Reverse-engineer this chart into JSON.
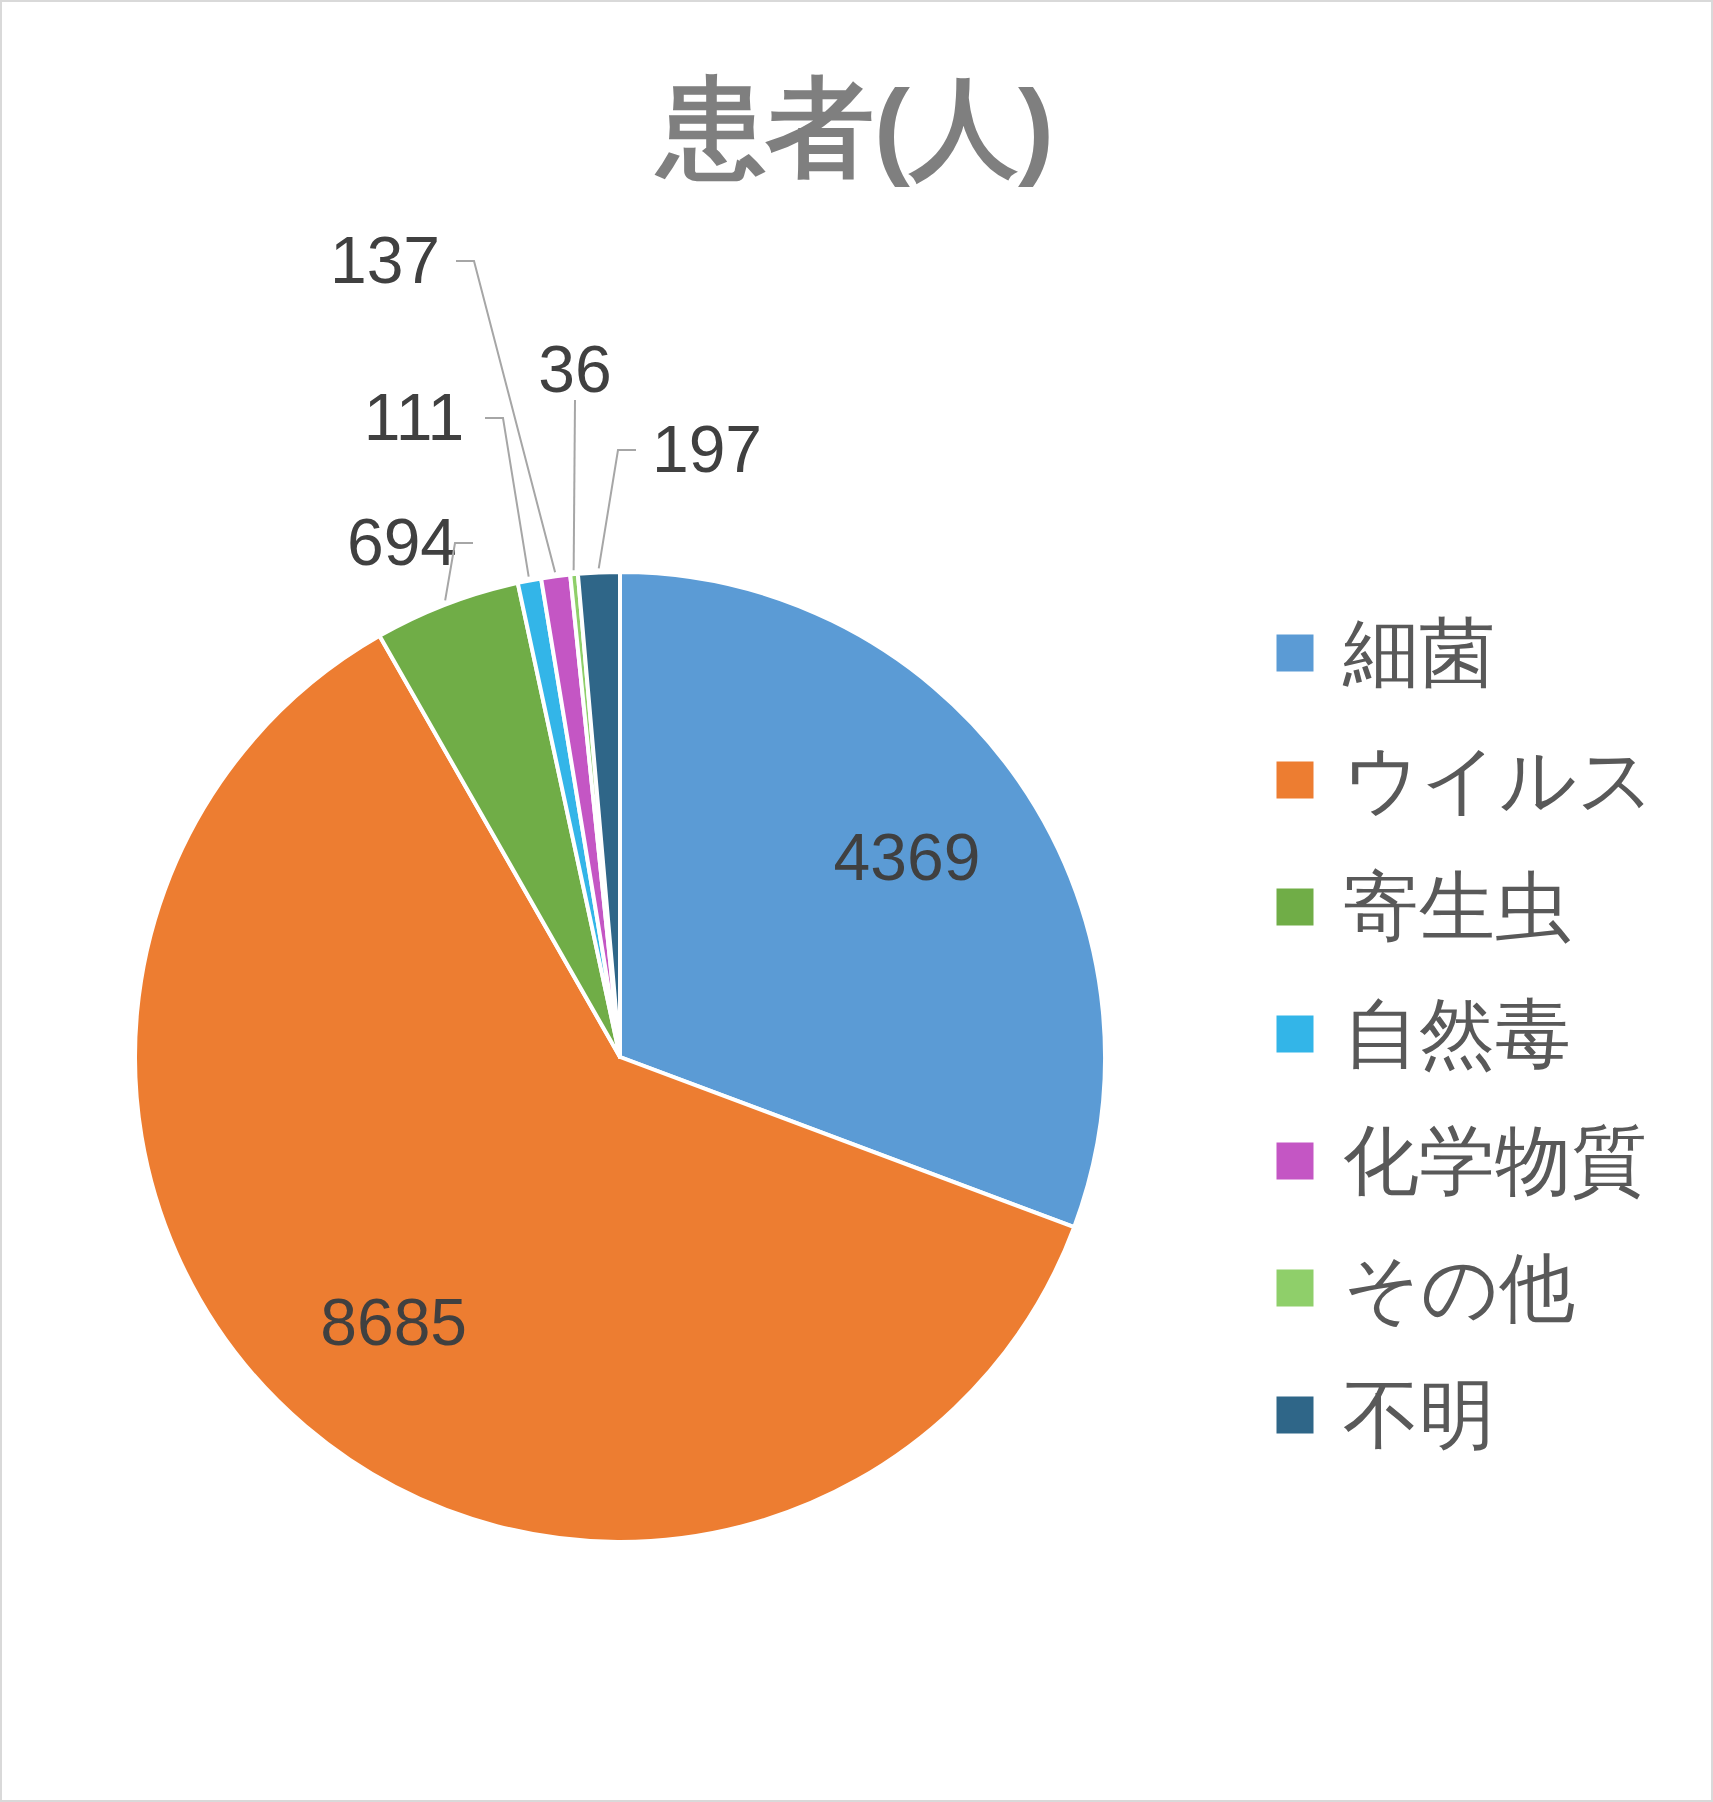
{
  "chart_data": {
    "type": "pie",
    "title": "患者(人)",
    "categories": [
      "細菌",
      "ウイルス",
      "寄生虫",
      "自然毒",
      "化学物質",
      "その他",
      "不明"
    ],
    "values": [
      4369,
      8685,
      694,
      111,
      137,
      36,
      197
    ],
    "colors": [
      "#5b9bd5",
      "#ed7d31",
      "#70ad47",
      "#33b5e8",
      "#c456c4",
      "#8fcf6a",
      "#2f6688"
    ],
    "data_labels": true,
    "legend": "right"
  }
}
